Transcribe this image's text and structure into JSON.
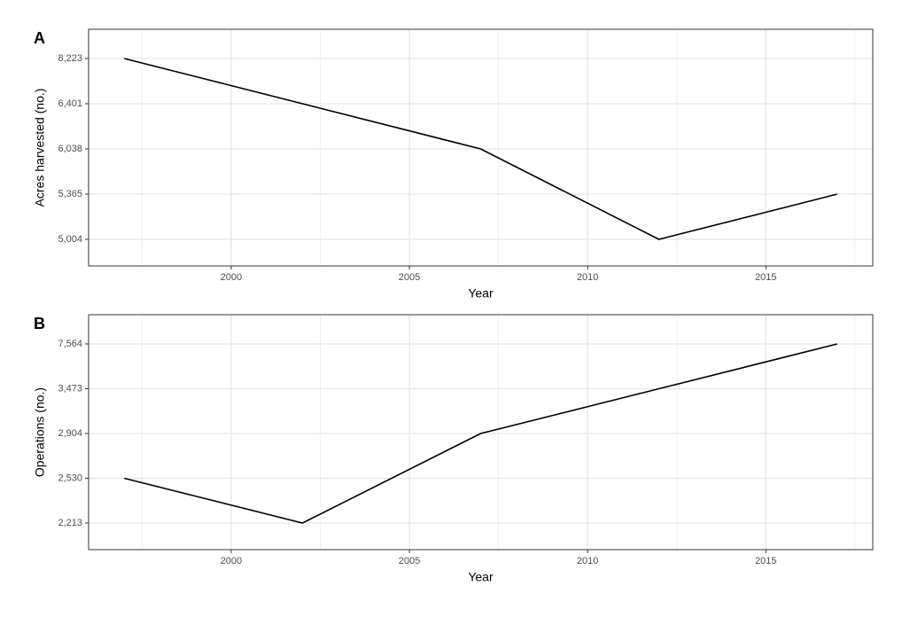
{
  "chart_data": [
    {
      "type": "line",
      "tag": "A",
      "x_label": "Year",
      "y_label": "Acres harvested (no.)",
      "x": [
        1997,
        2002,
        2007,
        2012,
        2017
      ],
      "series": [
        {
          "color": "#000000",
          "values": [
            8223,
            6401,
            6038,
            5004,
            5365
          ]
        }
      ],
      "xlim": [
        1996,
        2018
      ],
      "xticks": [
        2000,
        2005,
        2010,
        2015
      ],
      "y_scale": "ordinal",
      "yticks": [
        {
          "value": 5004,
          "label": "5,004"
        },
        {
          "value": 5365,
          "label": "5,365"
        },
        {
          "value": 6038,
          "label": "6,038"
        },
        {
          "value": 6401,
          "label": "6,401"
        },
        {
          "value": 8223,
          "label": "8,223"
        }
      ],
      "grid": true,
      "minor_grid": true
    },
    {
      "type": "line",
      "tag": "B",
      "x_label": "Year",
      "y_label": "Operations (no.)",
      "x": [
        1997,
        2002,
        2007,
        2012,
        2017
      ],
      "series": [
        {
          "color": "#000000",
          "values": [
            2530,
            2213,
            2904,
            3473,
            7564
          ]
        }
      ],
      "xlim": [
        1996,
        2018
      ],
      "xticks": [
        2000,
        2005,
        2010,
        2015
      ],
      "y_scale": "ordinal",
      "yticks": [
        {
          "value": 2213,
          "label": "2,213"
        },
        {
          "value": 2530,
          "label": "2,530"
        },
        {
          "value": 2904,
          "label": "2,904"
        },
        {
          "value": 3473,
          "label": "3,473"
        },
        {
          "value": 7564,
          "label": "7,564"
        }
      ],
      "grid": true,
      "minor_grid": true
    }
  ]
}
